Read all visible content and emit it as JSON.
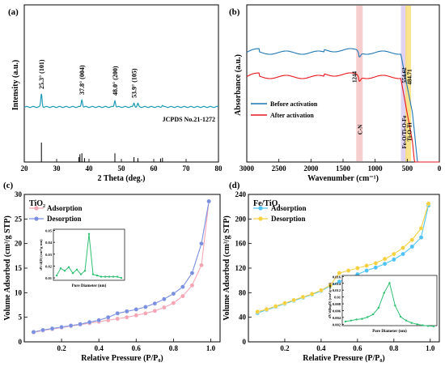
{
  "chart_data": [
    {
      "panel": "(a)",
      "type": "line",
      "xlabel": "2 Theta (deg.)",
      "ylabel": "Intensity (a.u.)",
      "xlim": [
        20,
        80
      ],
      "xticks": [
        20,
        30,
        40,
        50,
        60,
        70,
        80
      ],
      "series_color": "#1f9bb5",
      "peaks": [
        {
          "x": 25.3,
          "label": "25.3° (101)"
        },
        {
          "x": 37.8,
          "label": "37.8° (004)"
        },
        {
          "x": 48.0,
          "label": "48.0° (200)"
        },
        {
          "x": 53.9,
          "label": "53.9° (105)"
        }
      ],
      "reference_label": "JCPDS No.21-1272",
      "reference_lines": [
        {
          "x": 25.3,
          "h": 1.0
        },
        {
          "x": 36.9,
          "h": 0.25
        },
        {
          "x": 37.2,
          "h": 0.4
        },
        {
          "x": 37.8,
          "h": 0.45
        },
        {
          "x": 38.6,
          "h": 0.2
        },
        {
          "x": 48.0,
          "h": 0.45
        },
        {
          "x": 53.9,
          "h": 0.25
        },
        {
          "x": 55.1,
          "h": 0.2
        },
        {
          "x": 62.1,
          "h": 0.18
        },
        {
          "x": 62.7,
          "h": 0.22
        }
      ]
    },
    {
      "panel": "(b)",
      "type": "line",
      "xlabel": "Wavenumber (cm⁻¹)",
      "ylabel": "Absorbance (a.u.)",
      "xlim": [
        3000,
        0
      ],
      "xticks": [
        3000,
        2500,
        2000,
        1500,
        1000,
        500,
        0
      ],
      "series": [
        {
          "name": "Before activation",
          "color": "#1f77b4"
        },
        {
          "name": "After activation",
          "color": "#e8161b"
        }
      ],
      "bands": [
        {
          "x": 1244,
          "value_label": "1244",
          "assign_label": "C-N",
          "color": "#f4c2c2"
        },
        {
          "x": 554.62,
          "value_label": "554.62",
          "assign_label": "Fe-O/Ti-O-Fe",
          "color": "#d9c8f0"
        },
        {
          "x": 484.71,
          "value_label": "484.71",
          "assign_label": "Ti-O-Ti",
          "color": "#f7dc6f"
        }
      ]
    },
    {
      "panel": "(c)",
      "type": "line",
      "title": "TiO₂",
      "xlabel": "Relative Pressure (P/P₀)",
      "ylabel": "Volume Adsorbed (cm³/g STP)",
      "xlim": [
        0.0,
        1.05
      ],
      "ylim": [
        0,
        30
      ],
      "xticks": [
        0.2,
        0.4,
        0.6,
        0.8,
        1.0
      ],
      "yticks": [
        0,
        5,
        10,
        15,
        20,
        25,
        30
      ],
      "series": [
        {
          "name": "Adsorption",
          "color": "#f4a6b5",
          "x": [
            0.05,
            0.1,
            0.15,
            0.2,
            0.25,
            0.3,
            0.35,
            0.4,
            0.45,
            0.5,
            0.55,
            0.6,
            0.65,
            0.7,
            0.75,
            0.8,
            0.85,
            0.9,
            0.95,
            0.99
          ],
          "y": [
            1.9,
            2.3,
            2.6,
            2.9,
            3.2,
            3.5,
            3.8,
            4.1,
            4.4,
            4.7,
            5.0,
            5.4,
            5.8,
            6.3,
            7.0,
            7.9,
            9.3,
            11.5,
            15.6,
            28.6
          ]
        },
        {
          "name": "Desorption",
          "color": "#7b8fe0",
          "x": [
            0.99,
            0.95,
            0.9,
            0.85,
            0.8,
            0.75,
            0.7,
            0.65,
            0.6,
            0.55,
            0.5,
            0.45,
            0.4,
            0.35,
            0.3,
            0.25,
            0.2,
            0.15,
            0.1,
            0.05
          ],
          "y": [
            28.6,
            20.0,
            14.0,
            11.2,
            9.8,
            8.7,
            7.8,
            7.1,
            6.6,
            6.2,
            5.8,
            5.0,
            4.4,
            4.0,
            3.6,
            3.3,
            3.0,
            2.7,
            2.4,
            2.0
          ]
        }
      ],
      "inset": {
        "xlabel": "Pore Diameter (nm)",
        "ylabel": "dV/d(D) (cm³/g·nm)",
        "yticks": [
          0.01,
          0.02,
          0.03,
          0.04,
          0.05
        ],
        "color": "#2fbf71",
        "y": [
          0.012,
          0.018,
          0.016,
          0.019,
          0.014,
          0.017,
          0.013,
          0.016,
          0.047,
          0.013,
          0.012,
          0.011,
          0.011,
          0.011,
          0.011,
          0.011,
          0.01
        ]
      }
    },
    {
      "panel": "(d)",
      "type": "line",
      "title": "Fe/TiO₂",
      "xlabel": "Relative Pressure (P/P₀)",
      "ylabel": "Volume Adsorbed (cm³/g STP)",
      "xlim": [
        0.0,
        1.05
      ],
      "ylim": [
        0,
        240
      ],
      "xticks": [
        0.2,
        0.4,
        0.6,
        0.8,
        1.0
      ],
      "yticks": [
        0,
        40,
        80,
        120,
        160,
        200,
        240
      ],
      "series": [
        {
          "name": "Adsorption",
          "color": "#4fc3f7",
          "x": [
            0.05,
            0.1,
            0.15,
            0.2,
            0.25,
            0.3,
            0.35,
            0.4,
            0.45,
            0.5,
            0.55,
            0.6,
            0.65,
            0.7,
            0.75,
            0.8,
            0.85,
            0.9,
            0.95,
            0.99
          ],
          "y": [
            47,
            52,
            57,
            62,
            67,
            72,
            77,
            83,
            91,
            98,
            104,
            110,
            116,
            121,
            127,
            134,
            143,
            155,
            170,
            222
          ]
        },
        {
          "name": "Desorption",
          "color": "#f5d142",
          "x": [
            0.99,
            0.95,
            0.9,
            0.85,
            0.8,
            0.75,
            0.7,
            0.65,
            0.6,
            0.55,
            0.5,
            0.45,
            0.4,
            0.35,
            0.3,
            0.25,
            0.2,
            0.15,
            0.1,
            0.05
          ],
          "y": [
            225,
            185,
            166,
            153,
            143,
            135,
            128,
            124,
            120,
            116,
            112,
            92,
            84,
            78,
            73,
            68,
            63,
            58,
            53,
            49
          ]
        }
      ],
      "inset": {
        "xlabel": "Pore Diameter (nm)",
        "ylabel": "dV/d(logD) (cm³/g·nm)",
        "yticks": [
          0.002,
          0.004,
          0.006,
          0.008,
          0.01,
          0.012,
          0.014,
          0.016
        ],
        "color": "#2fbf71",
        "y": [
          0.0028,
          0.0031,
          0.0034,
          0.0036,
          0.0041,
          0.0049,
          0.0068,
          0.0112,
          0.0141,
          0.0075,
          0.0042,
          0.0031,
          0.0024,
          0.002,
          0.0017,
          0.0015,
          0.0014
        ]
      }
    }
  ]
}
